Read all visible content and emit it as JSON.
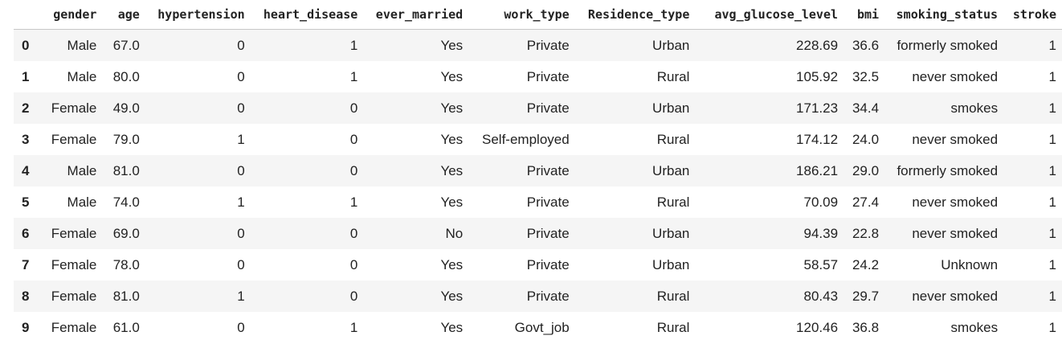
{
  "table": {
    "index_header": "",
    "columns": [
      "gender",
      "age",
      "hypertension",
      "heart_disease",
      "ever_married",
      "work_type",
      "Residence_type",
      "avg_glucose_level",
      "bmi",
      "smoking_status",
      "stroke"
    ],
    "rows": [
      {
        "index": "0",
        "cells": [
          "Male",
          "67.0",
          "0",
          "1",
          "Yes",
          "Private",
          "Urban",
          "228.69",
          "36.6",
          "formerly smoked",
          "1"
        ]
      },
      {
        "index": "1",
        "cells": [
          "Male",
          "80.0",
          "0",
          "1",
          "Yes",
          "Private",
          "Rural",
          "105.92",
          "32.5",
          "never smoked",
          "1"
        ]
      },
      {
        "index": "2",
        "cells": [
          "Female",
          "49.0",
          "0",
          "0",
          "Yes",
          "Private",
          "Urban",
          "171.23",
          "34.4",
          "smokes",
          "1"
        ]
      },
      {
        "index": "3",
        "cells": [
          "Female",
          "79.0",
          "1",
          "0",
          "Yes",
          "Self-employed",
          "Rural",
          "174.12",
          "24.0",
          "never smoked",
          "1"
        ]
      },
      {
        "index": "4",
        "cells": [
          "Male",
          "81.0",
          "0",
          "0",
          "Yes",
          "Private",
          "Urban",
          "186.21",
          "29.0",
          "formerly smoked",
          "1"
        ]
      },
      {
        "index": "5",
        "cells": [
          "Male",
          "74.0",
          "1",
          "1",
          "Yes",
          "Private",
          "Rural",
          "70.09",
          "27.4",
          "never smoked",
          "1"
        ]
      },
      {
        "index": "6",
        "cells": [
          "Female",
          "69.0",
          "0",
          "0",
          "No",
          "Private",
          "Urban",
          "94.39",
          "22.8",
          "never smoked",
          "1"
        ]
      },
      {
        "index": "7",
        "cells": [
          "Female",
          "78.0",
          "0",
          "0",
          "Yes",
          "Private",
          "Urban",
          "58.57",
          "24.2",
          "Unknown",
          "1"
        ]
      },
      {
        "index": "8",
        "cells": [
          "Female",
          "81.0",
          "1",
          "0",
          "Yes",
          "Private",
          "Rural",
          "80.43",
          "29.7",
          "never smoked",
          "1"
        ]
      },
      {
        "index": "9",
        "cells": [
          "Female",
          "61.0",
          "0",
          "1",
          "Yes",
          "Govt_job",
          "Rural",
          "120.46",
          "36.8",
          "smokes",
          "1"
        ]
      }
    ]
  },
  "colors": {
    "stripe": "#f5f5f5",
    "text": "#222222",
    "header_border": "#c8c8c8"
  }
}
